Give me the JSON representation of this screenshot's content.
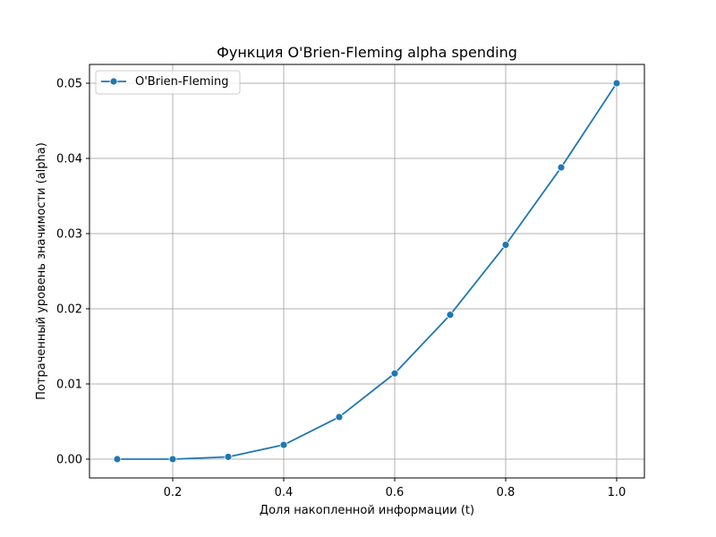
{
  "chart_data": {
    "type": "line",
    "title": "Функция O'Brien-Fleming alpha spending",
    "xlabel": "Доля накопленной информации (t)",
    "ylabel": "Потраченный уровень значимости (alpha)",
    "xlim": [
      0.05,
      1.05
    ],
    "ylim": [
      -0.0025,
      0.0525
    ],
    "x_ticks": [
      0.2,
      0.4,
      0.6,
      0.8,
      1.0
    ],
    "x_tick_labels": [
      "0.2",
      "0.4",
      "0.6",
      "0.8",
      "1.0"
    ],
    "y_ticks": [
      0.0,
      0.01,
      0.02,
      0.03,
      0.04,
      0.05
    ],
    "y_tick_labels": [
      "0.00",
      "0.01",
      "0.02",
      "0.03",
      "0.04",
      "0.05"
    ],
    "grid": true,
    "legend_position": "top-left",
    "x": [
      0.1,
      0.2,
      0.3,
      0.4,
      0.5,
      0.6,
      0.7,
      0.8,
      0.9,
      1.0
    ],
    "series": [
      {
        "name": "O'Brien-Fleming",
        "color": "#1f77b4",
        "marker": "circle",
        "values": [
          0.0,
          0.0,
          0.0003,
          0.0019,
          0.0056,
          0.0114,
          0.0192,
          0.0285,
          0.0388,
          0.05
        ]
      }
    ],
    "colors": {
      "grid": "#b0b0b0",
      "axes": "#000000"
    }
  }
}
